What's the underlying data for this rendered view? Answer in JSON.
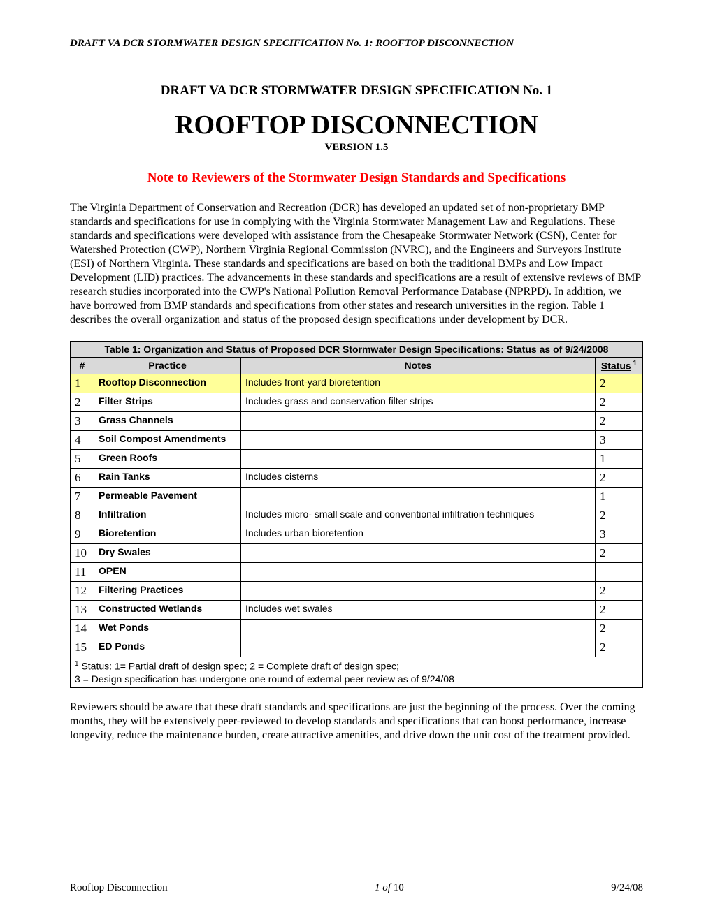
{
  "header": "DRAFT  VA DCR STORMWATER DESIGN SPECIFICATION No. 1: ROOFTOP DISCONNECTION",
  "spec_title": "DRAFT VA DCR STORMWATER DESIGN SPECIFICATION No. 1",
  "main_title": "ROOFTOP DISCONNECTION",
  "version": "VERSION 1.5",
  "reviewer_note": "Note to Reviewers of the Stormwater Design Standards and Specifications",
  "intro_para": "The Virginia Department of Conservation and Recreation (DCR) has developed an updated set of non-proprietary BMP standards and specifications for use in complying with the Virginia Stormwater Management Law and Regulations.  These standards and specifications were developed with assistance from the Chesapeake Stormwater Network (CSN), Center for Watershed Protection (CWP), Northern Virginia Regional Commission (NVRC), and the Engineers and Surveyors Institute (ESI) of Northern Virginia.  These standards and specifications are based on both the traditional BMPs and Low Impact Development (LID) practices.  The advancements in these standards and specifications are a result of extensive reviews of BMP research studies incorporated into the CWP's National Pollution Removal Performance Database (NPRPD).  In addition, we have borrowed from BMP standards and specifications from other states and research universities in the region. Table 1 describes the overall organization and status of the proposed design specifications under development by DCR.",
  "table": {
    "title": "Table 1: Organization and Status of Proposed DCR Stormwater Design Specifications: Status as of 9/24/2008",
    "headers": {
      "num": "#",
      "practice": "Practice",
      "notes": "Notes",
      "status": "Status"
    },
    "rows": [
      {
        "n": "1",
        "practice": "Rooftop Disconnection",
        "notes": "Includes front-yard bioretention",
        "status": "2",
        "highlight": true
      },
      {
        "n": "2",
        "practice": "Filter Strips",
        "notes": "Includes grass and conservation filter strips",
        "status": "2"
      },
      {
        "n": "3",
        "practice": "Grass Channels",
        "notes": "",
        "status": "2"
      },
      {
        "n": "4",
        "practice": "Soil Compost Amendments",
        "notes": "",
        "status": "3"
      },
      {
        "n": "5",
        "practice": "Green Roofs",
        "notes": "",
        "status": "1"
      },
      {
        "n": "6",
        "practice": "Rain Tanks",
        "notes": "Includes cisterns",
        "status": "2"
      },
      {
        "n": "7",
        "practice": "Permeable Pavement",
        "notes": "",
        "status": "1"
      },
      {
        "n": "8",
        "practice": "Infiltration",
        "notes": "Includes micro- small scale and conventional infiltration techniques",
        "status": "2"
      },
      {
        "n": "9",
        "practice": "Bioretention",
        "notes": "Includes urban bioretention",
        "status": "3"
      },
      {
        "n": "10",
        "practice": "Dry Swales",
        "notes": "",
        "status": "2"
      },
      {
        "n": "11",
        "practice": "OPEN",
        "notes": "",
        "status": ""
      },
      {
        "n": "12",
        "practice": "Filtering Practices",
        "notes": "",
        "status": "2"
      },
      {
        "n": "13",
        "practice": "Constructed Wetlands",
        "notes": "Includes wet swales",
        "status": "2"
      },
      {
        "n": "14",
        "practice": "Wet Ponds",
        "notes": "",
        "status": "2"
      },
      {
        "n": "15",
        "practice": "ED Ponds",
        "notes": "",
        "status": "2"
      }
    ],
    "footnote_line1": " Status: 1= Partial draft of design spec; 2 = Complete draft of design spec;",
    "footnote_line2": "3 = Design specification has undergone one round of external peer review as of 9/24/08"
  },
  "closing_para": "Reviewers should be aware that these draft standards and specifications are just the beginning of the process.  Over the coming months, they will be extensively peer-reviewed to develop standards and specifications that can boost performance, increase longevity, reduce the maintenance burden, create attractive amenities, and drive down the unit cost of the treatment provided.",
  "footer": {
    "left": "Rooftop Disconnection",
    "center_page": "1",
    "center_of": " of ",
    "center_total": "10",
    "right": "9/24/08"
  },
  "colors": {
    "highlight_bg": "#ffff99",
    "header_bg": "#d9d9d9",
    "note_color": "#ff0000",
    "text_color": "#000000",
    "page_bg": "#ffffff"
  }
}
